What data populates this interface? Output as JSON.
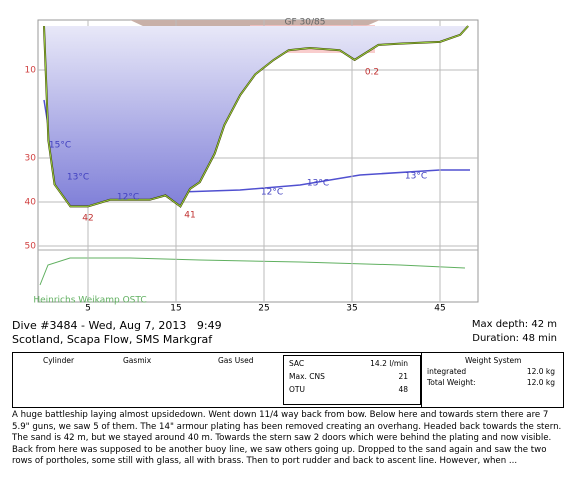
{
  "chart_data": {
    "type": "line",
    "x": [
      0,
      0.5,
      1.2,
      3,
      5,
      7.5,
      9.8,
      12,
      13.8,
      15.5,
      16.6,
      17.7,
      19.4,
      20.5,
      22.3,
      24,
      26.1,
      27.8,
      30.2,
      33.6,
      35.3,
      38,
      40.5,
      45,
      47.3,
      48.2
    ],
    "values": [
      0,
      26,
      36,
      41,
      41,
      39.5,
      39.5,
      39.5,
      38.5,
      41,
      37,
      35.5,
      29,
      22.5,
      15.7,
      11,
      7.7,
      5.5,
      5,
      5.5,
      7.7,
      4.3,
      4,
      3.6,
      2,
      0
    ],
    "color": "#3a3a00",
    "xlim": [
      0,
      49.5
    ],
    "ylim": [
      0,
      60
    ],
    "xticks": [
      5,
      15,
      25,
      35,
      45
    ],
    "yticks": [
      10,
      30,
      40,
      50
    ],
    "grid": true,
    "annotations": [
      "GF 30/85",
      "15°C",
      "13°C",
      "12°C",
      "12°C",
      "13°C",
      "13°C",
      "42",
      "41",
      "0.2",
      "Heinrichs Weikamp OSTC"
    ]
  },
  "header": {
    "dive": "Dive #3484 - Wed, Aug 7, 2013   9:49",
    "location": "Scotland, Scapa Flow, SMS Markgraf",
    "max_depth": "Max depth: 42 m",
    "duration": "Duration: 48 min"
  },
  "table": {
    "cylinder_headers": [
      "Cylinder",
      "Gasmix",
      "Gas Used"
    ],
    "stats": [
      [
        "SAC",
        "14.2 l/min"
      ],
      [
        "Max. CNS",
        "21"
      ],
      [
        "OTU",
        "48"
      ]
    ],
    "weight_title": "Weight System",
    "weights": [
      [
        "integrated",
        "12.0 kg"
      ],
      [
        "Total Weight:",
        "12.0 kg"
      ]
    ]
  },
  "notes": "A huge battleship laying almost upsidedown. Went down 11/4 way back from bow. Below here and towards stern there are 7 5.9\" guns, we saw 5 of them. The 14\" armour plating has been removed creating an overhang. Headed back towards the stern. The sand is 42 m, but we stayed around 40 m. Towards the stern saw 2 doors which were behind the plating and now visible. Back from here was supposed to be another buoy line, we saw others going up. Dropped to the sand again and saw the two rows of portholes, some still with glass, all with brass. Then to port rudder and back to ascent line. However, when ..."
}
